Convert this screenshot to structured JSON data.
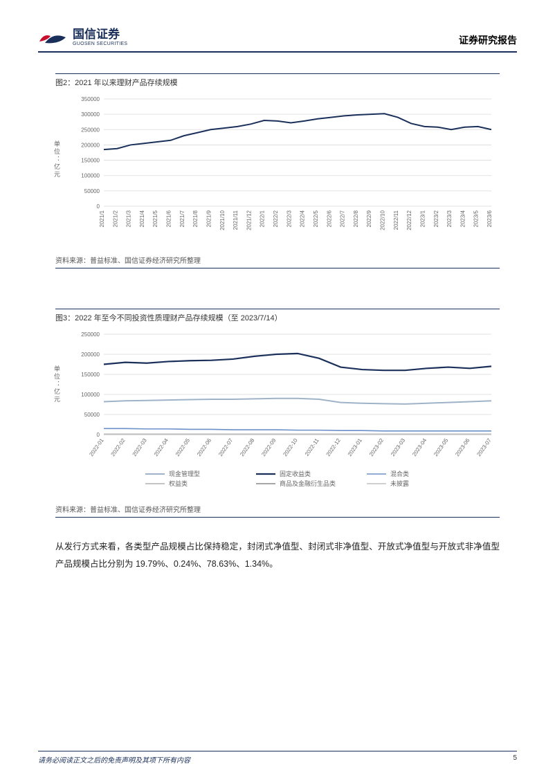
{
  "header": {
    "company_cn": "国信证券",
    "company_en": "GUOSEN SECURITIES",
    "report_type": "证券研究报告",
    "logo_red": "#c8102e",
    "logo_blue": "#1a2f5a"
  },
  "chart2": {
    "title": "图2：2021 年以来理财产品存续规模",
    "source": "资料来源：普益标准、国信证券经济研究所整理",
    "y_axis_label": "单位：亿元",
    "type": "line",
    "ylim": [
      0,
      350000
    ],
    "ytick_step": 50000,
    "yticks": [
      0,
      50000,
      100000,
      150000,
      200000,
      250000,
      300000,
      350000
    ],
    "categories": [
      "2021/1",
      "2021/2",
      "2021/3",
      "2021/4",
      "2021/5",
      "2021/6",
      "2021/7",
      "2021/8",
      "2021/9",
      "2021/10",
      "2021/11",
      "2021/12",
      "2022/1",
      "2022/2",
      "2022/3",
      "2022/4",
      "2022/5",
      "2022/6",
      "2022/7",
      "2022/8",
      "2022/9",
      "2022/10",
      "2022/11",
      "2022/12",
      "2023/1",
      "2023/2",
      "2023/3",
      "2023/4",
      "2023/5",
      "2023/6"
    ],
    "values": [
      185000,
      188000,
      200000,
      205000,
      210000,
      215000,
      230000,
      240000,
      250000,
      255000,
      260000,
      268000,
      280000,
      278000,
      272000,
      278000,
      285000,
      290000,
      295000,
      298000,
      300000,
      302000,
      290000,
      270000,
      260000,
      258000,
      250000,
      258000,
      260000,
      250000
    ],
    "line_color": "#1a2f5a",
    "line_width": 2,
    "grid_color": "#d9d9d9",
    "background_color": "#ffffff",
    "axis_fontsize": 8,
    "label_fontsize": 9,
    "title_fontsize": 11
  },
  "chart3": {
    "title": "图3：2022 年至今不同投资性质理财产品存续规模（至 2023/7/14）",
    "source": "资料来源：普益标准、国信证券经济研究所整理",
    "y_axis_label": "单位：亿元",
    "type": "line",
    "ylim": [
      0,
      250000
    ],
    "ytick_step": 50000,
    "yticks": [
      0,
      50000,
      100000,
      150000,
      200000,
      250000
    ],
    "categories": [
      "2022-01",
      "2022-02",
      "2022-03",
      "2022-04",
      "2022-05",
      "2022-06",
      "2022-07",
      "2022-08",
      "2022-09",
      "2022-10",
      "2022-11",
      "2022-12",
      "2023-01",
      "2023-02",
      "2023-03",
      "2023-04",
      "2023-05",
      "2023-06",
      "2023-07"
    ],
    "series": [
      {
        "name": "现金管理型",
        "color": "#9fb3c8",
        "width": 2,
        "values": [
          82000,
          84000,
          85000,
          86000,
          87000,
          88000,
          88000,
          89000,
          90000,
          90000,
          88000,
          80000,
          78000,
          77000,
          76000,
          78000,
          80000,
          82000,
          84000
        ]
      },
      {
        "name": "固定收益类",
        "color": "#1a2f5a",
        "width": 2.2,
        "values": [
          175000,
          180000,
          178000,
          182000,
          184000,
          185000,
          188000,
          195000,
          200000,
          202000,
          190000,
          168000,
          162000,
          160000,
          160000,
          165000,
          168000,
          165000,
          170000
        ]
      },
      {
        "name": "混合类",
        "color": "#6b8fc9",
        "width": 1.6,
        "values": [
          15000,
          15000,
          14000,
          14000,
          13000,
          13000,
          12000,
          12000,
          12000,
          11000,
          11000,
          10000,
          10000,
          9000,
          9000,
          9000,
          9000,
          9000,
          9000
        ]
      },
      {
        "name": "权益类",
        "color": "#b0b0b0",
        "width": 1.6,
        "values": [
          1000,
          1000,
          1000,
          1000,
          1000,
          1000,
          1000,
          1000,
          1000,
          1000,
          1000,
          1000,
          1000,
          1000,
          1000,
          1000,
          1000,
          1000,
          1000
        ]
      },
      {
        "name": "商品及金融衍生品类",
        "color": "#888888",
        "width": 1.6,
        "values": [
          500,
          500,
          500,
          500,
          500,
          500,
          500,
          500,
          500,
          500,
          500,
          500,
          500,
          500,
          500,
          500,
          500,
          500,
          500
        ]
      },
      {
        "name": "未披露",
        "color": "#c0c0c0",
        "width": 1.6,
        "values": [
          300,
          300,
          300,
          300,
          300,
          300,
          300,
          300,
          300,
          300,
          300,
          300,
          300,
          300,
          300,
          300,
          300,
          300,
          300
        ]
      }
    ],
    "grid_color": "#d9d9d9",
    "background_color": "#ffffff",
    "axis_fontsize": 8,
    "label_fontsize": 9,
    "title_fontsize": 11,
    "legend_fontsize": 9
  },
  "body_paragraph": "从发行方式来看，各类型产品规模占比保持稳定，封闭式净值型、封闭式非净值型、开放式净值型与开放式非净值型产品规模占比分别为 19.79%、0.24%、78.63%、1.34%。",
  "footer": {
    "disclaimer": "请务必阅读正文之后的免责声明及其项下所有内容",
    "page_number": "5"
  }
}
